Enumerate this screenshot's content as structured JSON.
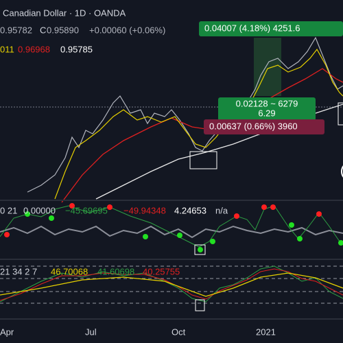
{
  "header": {
    "title": "Canadian Dollar · 1D · OANDA",
    "ohlc_open": "0.95782",
    "ohlc_close_label": "C",
    "ohlc_close": "0.95890",
    "change": "+0.00060 (+0.06%)",
    "ma_values": [
      "011",
      "0.96968",
      "0.95785"
    ]
  },
  "measures": {
    "top_label": "0.04007 (4.18%) 4251.6",
    "range_line1": "0.02128 ~ 6279",
    "range_line2": "6.29",
    "bottom_label": "0.00637 (0.66%) 3960"
  },
  "pane2": {
    "params": "0 21",
    "values": [
      "0.00000",
      "−45.69695",
      "−49.94348",
      "4.24653",
      "n/a"
    ]
  },
  "pane3": {
    "params": "21 34 2 7",
    "values": [
      "46.70068",
      "41.60698",
      "40.25755"
    ]
  },
  "x_axis": [
    "Apr",
    "Jul",
    "Oct",
    "2021"
  ]
}
